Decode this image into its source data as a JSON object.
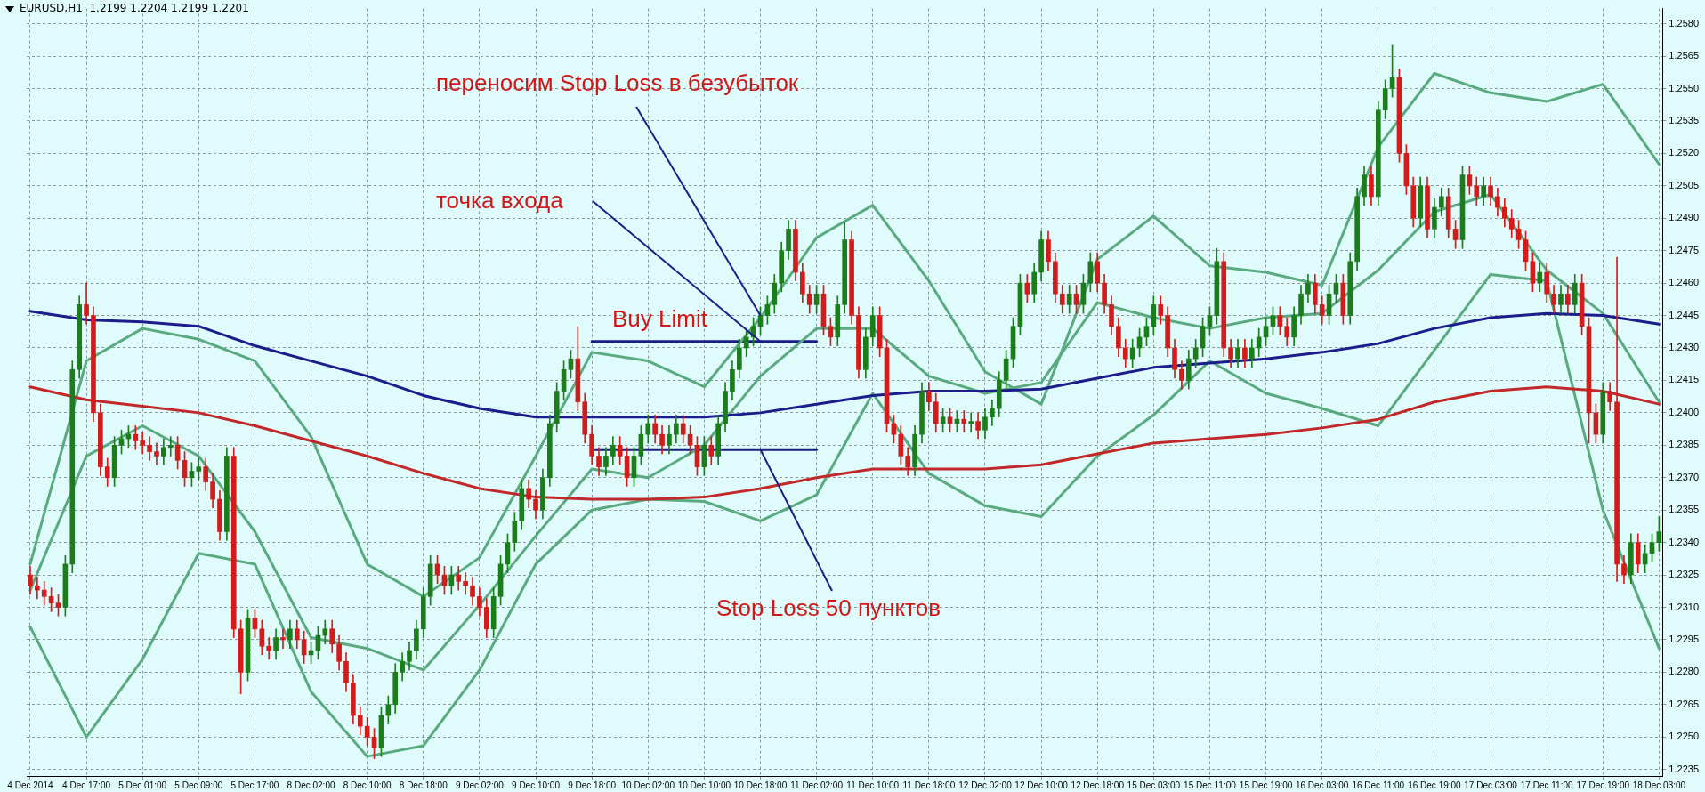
{
  "chart_data": {
    "type": "candlestick",
    "title": "EURUSD,H1  1.2199 1.2204 1.2199 1.2201",
    "categories": [
      "4 Dec 2014",
      null,
      null,
      null,
      null,
      null,
      null,
      null,
      "4 Dec 17:00",
      null,
      null,
      null,
      null,
      null,
      null,
      null,
      "5 Dec 01:00",
      null,
      null,
      null,
      null,
      null,
      null,
      null,
      "5 Dec 09:00",
      null,
      null,
      null,
      null,
      null,
      null,
      null,
      "5 Dec 17:00",
      null,
      null,
      null,
      null,
      null,
      null,
      null,
      "8 Dec 02:00",
      null,
      null,
      null,
      null,
      null,
      null,
      null,
      "8 Dec 10:00",
      null,
      null,
      null,
      null,
      null,
      null,
      null,
      "8 Dec 18:00",
      null,
      null,
      null,
      null,
      null,
      null,
      null,
      "9 Dec 02:00",
      null,
      null,
      null,
      null,
      null,
      null,
      null,
      "9 Dec 10:00",
      null,
      null,
      null,
      null,
      null,
      null,
      null,
      "9 Dec 18:00",
      null,
      null,
      null,
      null,
      null,
      null,
      null,
      "10 Dec 02:00",
      null,
      null,
      null,
      null,
      null,
      null,
      null,
      "10 Dec 10:00",
      null,
      null,
      null,
      null,
      null,
      null,
      null,
      "10 Dec 18:00",
      null,
      null,
      null,
      null,
      null,
      null,
      null,
      "11 Dec 02:00",
      null,
      null,
      null,
      null,
      null,
      null,
      null,
      "11 Dec 10:00",
      null,
      null,
      null,
      null,
      null,
      null,
      null,
      "11 Dec 18:00",
      null,
      null,
      null,
      null,
      null,
      null,
      null,
      "12 Dec 02:00",
      null,
      null,
      null,
      null,
      null,
      null,
      null,
      "12 Dec 10:00",
      null,
      null,
      null,
      null,
      null,
      null,
      null,
      "12 Dec 18:00",
      null,
      null,
      null,
      null,
      null,
      null,
      null,
      "15 Dec 03:00",
      null,
      null,
      null,
      null,
      null,
      null,
      null,
      "15 Dec 11:00",
      null,
      null,
      null,
      null,
      null,
      null,
      null,
      "15 Dec 19:00",
      null,
      null,
      null,
      null,
      null,
      null,
      null,
      "16 Dec 03:00",
      null,
      null,
      null,
      null,
      null,
      null,
      null,
      "16 Dec 11:00",
      null,
      null,
      null,
      null,
      null,
      null,
      null,
      "16 Dec 19:00",
      null,
      null,
      null,
      null,
      null,
      null,
      null,
      "17 Dec 03:00",
      null,
      null,
      null,
      null,
      null,
      null,
      null,
      "17 Dec 11:00",
      null,
      null,
      null,
      null,
      null,
      null,
      null,
      "17 Dec 19:00",
      null,
      null,
      null,
      null,
      null,
      null,
      null,
      "18 Dec 03:00"
    ],
    "ohlc": [
      [
        1.2325,
        1.2329,
        1.2316,
        1.232
      ],
      [
        1.232,
        1.2324,
        1.2314,
        1.2318
      ],
      [
        1.2318,
        1.2322,
        1.2311,
        1.2315
      ],
      [
        1.2315,
        1.2319,
        1.2308,
        1.2312
      ],
      [
        1.2312,
        1.2316,
        1.2306,
        1.231
      ],
      [
        1.231,
        1.2334,
        1.2306,
        1.233
      ],
      [
        1.233,
        1.2424,
        1.2326,
        1.242
      ],
      [
        1.242,
        1.2454,
        1.2416,
        1.245
      ],
      [
        1.245,
        1.246,
        1.2441,
        1.2445
      ],
      [
        1.2445,
        1.2449,
        1.2396,
        1.24
      ],
      [
        1.24,
        1.2404,
        1.2371,
        1.2375
      ],
      [
        1.2375,
        1.2379,
        1.2366,
        1.237
      ],
      [
        1.237,
        1.2389,
        1.2366,
        1.2385
      ],
      [
        1.2385,
        1.2392,
        1.2381,
        1.2388
      ],
      [
        1.2388,
        1.2394,
        1.2384,
        1.239
      ],
      [
        1.239,
        1.2394,
        1.2383,
        1.2387
      ],
      [
        1.2387,
        1.2391,
        1.2381,
        1.2385
      ],
      [
        1.2385,
        1.2389,
        1.2378,
        1.2382
      ],
      [
        1.2382,
        1.2386,
        1.2376,
        1.238
      ],
      [
        1.238,
        1.2388,
        1.2376,
        1.2384
      ],
      [
        1.2384,
        1.2389,
        1.238,
        1.2385
      ],
      [
        1.2385,
        1.2389,
        1.2374,
        1.2378
      ],
      [
        1.2378,
        1.2382,
        1.2366,
        1.237
      ],
      [
        1.237,
        1.2377,
        1.2366,
        1.2373
      ],
      [
        1.2373,
        1.2379,
        1.2369,
        1.2375
      ],
      [
        1.2375,
        1.2379,
        1.2364,
        1.2368
      ],
      [
        1.2368,
        1.2372,
        1.2356,
        1.236
      ],
      [
        1.236,
        1.2364,
        1.2341,
        1.2345
      ],
      [
        1.2345,
        1.2384,
        1.2341,
        1.238
      ],
      [
        1.238,
        1.2384,
        1.2296,
        1.23
      ],
      [
        1.23,
        1.2304,
        1.227,
        1.228
      ],
      [
        1.228,
        1.2309,
        1.2276,
        1.2305
      ],
      [
        1.2305,
        1.2309,
        1.2296,
        1.23
      ],
      [
        1.23,
        1.2304,
        1.2288,
        1.2292
      ],
      [
        1.2292,
        1.2296,
        1.2286,
        1.229
      ],
      [
        1.229,
        1.23,
        1.2286,
        1.2296
      ],
      [
        1.2296,
        1.23,
        1.2291,
        1.2295
      ],
      [
        1.2295,
        1.2304,
        1.2291,
        1.23
      ],
      [
        1.23,
        1.2304,
        1.2291,
        1.2295
      ],
      [
        1.2295,
        1.2299,
        1.2284,
        1.2288
      ],
      [
        1.2288,
        1.2294,
        1.2284,
        1.229
      ],
      [
        1.229,
        1.2301,
        1.2286,
        1.2297
      ],
      [
        1.2297,
        1.2304,
        1.2293,
        1.23
      ],
      [
        1.23,
        1.2304,
        1.2289,
        1.2293
      ],
      [
        1.2293,
        1.2297,
        1.2281,
        1.2285
      ],
      [
        1.2285,
        1.2289,
        1.2271,
        1.2275
      ],
      [
        1.2275,
        1.2279,
        1.2256,
        1.226
      ],
      [
        1.226,
        1.2264,
        1.2251,
        1.2255
      ],
      [
        1.2255,
        1.2259,
        1.2246,
        1.225
      ],
      [
        1.225,
        1.2254,
        1.224,
        1.2245
      ],
      [
        1.2245,
        1.2264,
        1.2241,
        1.226
      ],
      [
        1.226,
        1.2269,
        1.2256,
        1.2265
      ],
      [
        1.2265,
        1.2284,
        1.2261,
        1.228
      ],
      [
        1.228,
        1.2289,
        1.2276,
        1.2285
      ],
      [
        1.2285,
        1.2294,
        1.2281,
        1.229
      ],
      [
        1.229,
        1.2304,
        1.2286,
        1.23
      ],
      [
        1.23,
        1.2319,
        1.2296,
        1.2315
      ],
      [
        1.2315,
        1.2334,
        1.2311,
        1.233
      ],
      [
        1.233,
        1.2334,
        1.2321,
        1.2325
      ],
      [
        1.2325,
        1.2329,
        1.2316,
        1.232
      ],
      [
        1.232,
        1.2329,
        1.2316,
        1.2325
      ],
      [
        1.2325,
        1.2329,
        1.2318,
        1.2322
      ],
      [
        1.2322,
        1.2326,
        1.2316,
        1.232
      ],
      [
        1.232,
        1.2324,
        1.2311,
        1.2315
      ],
      [
        1.2315,
        1.2319,
        1.2306,
        1.231
      ],
      [
        1.231,
        1.2314,
        1.2296,
        1.23
      ],
      [
        1.23,
        1.2319,
        1.2296,
        1.2315
      ],
      [
        1.2315,
        1.2334,
        1.2311,
        1.233
      ],
      [
        1.233,
        1.2344,
        1.2326,
        1.234
      ],
      [
        1.234,
        1.2354,
        1.2336,
        1.235
      ],
      [
        1.235,
        1.2369,
        1.2346,
        1.2365
      ],
      [
        1.2365,
        1.2369,
        1.2356,
        1.236
      ],
      [
        1.236,
        1.2364,
        1.2351,
        1.2355
      ],
      [
        1.2355,
        1.2374,
        1.2351,
        1.237
      ],
      [
        1.237,
        1.2399,
        1.2366,
        1.2395
      ],
      [
        1.2395,
        1.2414,
        1.2391,
        1.241
      ],
      [
        1.241,
        1.2424,
        1.2406,
        1.242
      ],
      [
        1.242,
        1.2429,
        1.2416,
        1.2425
      ],
      [
        1.2425,
        1.244,
        1.2401,
        1.2405
      ],
      [
        1.2405,
        1.2409,
        1.2386,
        1.239
      ],
      [
        1.239,
        1.2394,
        1.2376,
        1.238
      ],
      [
        1.238,
        1.2384,
        1.2371,
        1.2375
      ],
      [
        1.2375,
        1.2384,
        1.2371,
        1.238
      ],
      [
        1.238,
        1.2389,
        1.2376,
        1.2385
      ],
      [
        1.2385,
        1.2389,
        1.2376,
        1.238
      ],
      [
        1.238,
        1.2384,
        1.2366,
        1.237
      ],
      [
        1.237,
        1.2384,
        1.2366,
        1.238
      ],
      [
        1.238,
        1.2394,
        1.2376,
        1.239
      ],
      [
        1.239,
        1.2399,
        1.2386,
        1.2395
      ],
      [
        1.2395,
        1.2399,
        1.2386,
        1.239
      ],
      [
        1.239,
        1.2394,
        1.2381,
        1.2385
      ],
      [
        1.2385,
        1.2394,
        1.2381,
        1.239
      ],
      [
        1.239,
        1.2399,
        1.2386,
        1.2395
      ],
      [
        1.2395,
        1.2399,
        1.2386,
        1.239
      ],
      [
        1.239,
        1.2394,
        1.2381,
        1.2385
      ],
      [
        1.2385,
        1.2389,
        1.2371,
        1.2375
      ],
      [
        1.2375,
        1.2389,
        1.2371,
        1.2385
      ],
      [
        1.2385,
        1.2389,
        1.2376,
        1.238
      ],
      [
        1.238,
        1.2399,
        1.2376,
        1.2395
      ],
      [
        1.2395,
        1.2414,
        1.2391,
        1.241
      ],
      [
        1.241,
        1.2424,
        1.2406,
        1.242
      ],
      [
        1.242,
        1.2434,
        1.2416,
        1.243
      ],
      [
        1.243,
        1.2439,
        1.2426,
        1.2435
      ],
      [
        1.2435,
        1.2444,
        1.2431,
        1.244
      ],
      [
        1.244,
        1.2449,
        1.2436,
        1.2445
      ],
      [
        1.2445,
        1.2454,
        1.2441,
        1.245
      ],
      [
        1.245,
        1.2464,
        1.2446,
        1.246
      ],
      [
        1.246,
        1.2479,
        1.2456,
        1.2475
      ],
      [
        1.2475,
        1.2489,
        1.2471,
        1.2485
      ],
      [
        1.2485,
        1.2489,
        1.2461,
        1.2465
      ],
      [
        1.2465,
        1.2469,
        1.2451,
        1.2455
      ],
      [
        1.2455,
        1.2459,
        1.2446,
        1.245
      ],
      [
        1.245,
        1.2459,
        1.2446,
        1.2455
      ],
      [
        1.2455,
        1.2459,
        1.2436,
        1.244
      ],
      [
        1.244,
        1.2444,
        1.2431,
        1.2435
      ],
      [
        1.2435,
        1.2454,
        1.2431,
        1.245
      ],
      [
        1.245,
        1.2488,
        1.2446,
        1.248
      ],
      [
        1.248,
        1.2484,
        1.2441,
        1.2445
      ],
      [
        1.2445,
        1.2449,
        1.2416,
        1.242
      ],
      [
        1.242,
        1.2439,
        1.2416,
        1.2435
      ],
      [
        1.2435,
        1.2449,
        1.2431,
        1.2445
      ],
      [
        1.2445,
        1.2449,
        1.2426,
        1.243
      ],
      [
        1.243,
        1.2434,
        1.2391,
        1.2395
      ],
      [
        1.2395,
        1.2399,
        1.2386,
        1.239
      ],
      [
        1.239,
        1.2394,
        1.2376,
        1.238
      ],
      [
        1.238,
        1.2384,
        1.2371,
        1.2375
      ],
      [
        1.2375,
        1.2394,
        1.2371,
        1.239
      ],
      [
        1.239,
        1.2414,
        1.2386,
        1.241
      ],
      [
        1.241,
        1.2414,
        1.2401,
        1.2405
      ],
      [
        1.2405,
        1.2409,
        1.2391,
        1.2395
      ],
      [
        1.2395,
        1.2402,
        1.2391,
        1.2398
      ],
      [
        1.2398,
        1.2402,
        1.2391,
        1.2395
      ],
      [
        1.2395,
        1.2401,
        1.2391,
        1.2397
      ],
      [
        1.2397,
        1.2401,
        1.2391,
        1.2395
      ],
      [
        1.2395,
        1.24,
        1.2391,
        1.2396
      ],
      [
        1.2396,
        1.24,
        1.2388,
        1.2392
      ],
      [
        1.2392,
        1.2402,
        1.2388,
        1.2398
      ],
      [
        1.2398,
        1.2406,
        1.2394,
        1.2402
      ],
      [
        1.2402,
        1.2419,
        1.2398,
        1.2415
      ],
      [
        1.2415,
        1.2429,
        1.2411,
        1.2425
      ],
      [
        1.2425,
        1.2444,
        1.2421,
        1.244
      ],
      [
        1.244,
        1.2464,
        1.2436,
        1.246
      ],
      [
        1.246,
        1.2464,
        1.2451,
        1.2455
      ],
      [
        1.2455,
        1.2469,
        1.2451,
        1.2465
      ],
      [
        1.2465,
        1.2484,
        1.2461,
        1.248
      ],
      [
        1.248,
        1.2484,
        1.2466,
        1.247
      ],
      [
        1.247,
        1.2474,
        1.2451,
        1.2455
      ],
      [
        1.2455,
        1.2459,
        1.2446,
        1.245
      ],
      [
        1.245,
        1.2459,
        1.2446,
        1.2455
      ],
      [
        1.2455,
        1.2459,
        1.2446,
        1.245
      ],
      [
        1.245,
        1.2464,
        1.2446,
        1.246
      ],
      [
        1.246,
        1.2474,
        1.2456,
        1.247
      ],
      [
        1.247,
        1.2474,
        1.2456,
        1.246
      ],
      [
        1.246,
        1.2464,
        1.2446,
        1.245
      ],
      [
        1.245,
        1.2454,
        1.2436,
        1.244
      ],
      [
        1.244,
        1.2444,
        1.2426,
        1.243
      ],
      [
        1.243,
        1.2434,
        1.2421,
        1.2425
      ],
      [
        1.2425,
        1.2434,
        1.2421,
        1.243
      ],
      [
        1.243,
        1.2439,
        1.2426,
        1.2435
      ],
      [
        1.2435,
        1.2444,
        1.2431,
        1.244
      ],
      [
        1.244,
        1.2454,
        1.2436,
        1.245
      ],
      [
        1.245,
        1.2454,
        1.2441,
        1.2445
      ],
      [
        1.2445,
        1.2449,
        1.2426,
        1.243
      ],
      [
        1.243,
        1.2434,
        1.2416,
        1.242
      ],
      [
        1.242,
        1.2424,
        1.2411,
        1.2415
      ],
      [
        1.2415,
        1.2429,
        1.2411,
        1.2425
      ],
      [
        1.2425,
        1.2434,
        1.2421,
        1.243
      ],
      [
        1.243,
        1.2444,
        1.2426,
        1.244
      ],
      [
        1.244,
        1.2449,
        1.2436,
        1.2445
      ],
      [
        1.2445,
        1.2476,
        1.2441,
        1.247
      ],
      [
        1.247,
        1.2474,
        1.2426,
        1.243
      ],
      [
        1.243,
        1.2434,
        1.2421,
        1.2425
      ],
      [
        1.2425,
        1.2434,
        1.2421,
        1.243
      ],
      [
        1.243,
        1.2434,
        1.2421,
        1.2425
      ],
      [
        1.2425,
        1.2434,
        1.2421,
        1.243
      ],
      [
        1.243,
        1.2439,
        1.2426,
        1.2435
      ],
      [
        1.2435,
        1.2444,
        1.2431,
        1.244
      ],
      [
        1.244,
        1.2449,
        1.2436,
        1.2445
      ],
      [
        1.2445,
        1.2449,
        1.2436,
        1.244
      ],
      [
        1.244,
        1.2444,
        1.2431,
        1.2435
      ],
      [
        1.2435,
        1.2449,
        1.2431,
        1.2445
      ],
      [
        1.2445,
        1.2459,
        1.2441,
        1.2455
      ],
      [
        1.2455,
        1.2464,
        1.2451,
        1.246
      ],
      [
        1.246,
        1.2464,
        1.2446,
        1.245
      ],
      [
        1.245,
        1.2454,
        1.2441,
        1.2445
      ],
      [
        1.2445,
        1.2459,
        1.2441,
        1.2455
      ],
      [
        1.2455,
        1.2464,
        1.2451,
        1.246
      ],
      [
        1.246,
        1.2464,
        1.2441,
        1.2445
      ],
      [
        1.2445,
        1.2474,
        1.2441,
        1.247
      ],
      [
        1.247,
        1.2504,
        1.2466,
        1.25
      ],
      [
        1.25,
        1.2514,
        1.2496,
        1.251
      ],
      [
        1.251,
        1.2514,
        1.2496,
        1.25
      ],
      [
        1.25,
        1.2544,
        1.2496,
        1.254
      ],
      [
        1.254,
        1.2554,
        1.2536,
        1.255
      ],
      [
        1.255,
        1.257,
        1.2546,
        1.2555
      ],
      [
        1.2555,
        1.2559,
        1.2516,
        1.252
      ],
      [
        1.252,
        1.2524,
        1.2501,
        1.2505
      ],
      [
        1.2505,
        1.2509,
        1.2486,
        1.249
      ],
      [
        1.249,
        1.2509,
        1.2486,
        1.2505
      ],
      [
        1.2505,
        1.2509,
        1.2481,
        1.2485
      ],
      [
        1.2485,
        1.2499,
        1.2481,
        1.2495
      ],
      [
        1.2495,
        1.2504,
        1.2491,
        1.25
      ],
      [
        1.25,
        1.2504,
        1.2481,
        1.2485
      ],
      [
        1.2485,
        1.2489,
        1.2476,
        1.248
      ],
      [
        1.248,
        1.2514,
        1.2476,
        1.251
      ],
      [
        1.251,
        1.2514,
        1.2501,
        1.2505
      ],
      [
        1.2505,
        1.2509,
        1.2496,
        1.25
      ],
      [
        1.25,
        1.2509,
        1.2496,
        1.2505
      ],
      [
        1.2505,
        1.2509,
        1.2496,
        1.25
      ],
      [
        1.25,
        1.2504,
        1.2491,
        1.2495
      ],
      [
        1.2495,
        1.2499,
        1.2486,
        1.249
      ],
      [
        1.249,
        1.2494,
        1.2481,
        1.2485
      ],
      [
        1.2485,
        1.2489,
        1.2476,
        1.248
      ],
      [
        1.248,
        1.2484,
        1.2466,
        1.247
      ],
      [
        1.247,
        1.2474,
        1.2456,
        1.246
      ],
      [
        1.246,
        1.2469,
        1.2456,
        1.2465
      ],
      [
        1.2465,
        1.2469,
        1.2451,
        1.2455
      ],
      [
        1.2455,
        1.2459,
        1.2446,
        1.245
      ],
      [
        1.245,
        1.2459,
        1.2446,
        1.2455
      ],
      [
        1.2455,
        1.2459,
        1.2446,
        1.245
      ],
      [
        1.245,
        1.2464,
        1.2446,
        1.246
      ],
      [
        1.246,
        1.2464,
        1.2436,
        1.244
      ],
      [
        1.244,
        1.2444,
        1.2386,
        1.24
      ],
      [
        1.24,
        1.2404,
        1.2386,
        1.239
      ],
      [
        1.239,
        1.2414,
        1.2386,
        1.241
      ],
      [
        1.241,
        1.2414,
        1.2401,
        1.2405
      ],
      [
        1.2405,
        1.2472,
        1.2322,
        1.233
      ],
      [
        1.233,
        1.2334,
        1.2321,
        1.2325
      ],
      [
        1.2325,
        1.2344,
        1.2321,
        1.234
      ],
      [
        1.234,
        1.2344,
        1.2326,
        1.233
      ],
      [
        1.233,
        1.2339,
        1.2326,
        1.2335
      ],
      [
        1.2335,
        1.2344,
        1.2331,
        1.234
      ],
      [
        1.234,
        1.2352,
        1.2336,
        1.2345
      ]
    ],
    "series": [
      {
        "type": "line",
        "color": "#1c1c8a",
        "x": [
          "4 Dec 2014",
          "4 Dec 17:00",
          "5 Dec 01:00",
          "5 Dec 09:00",
          "5 Dec 17:00",
          "8 Dec 02:00",
          "8 Dec 10:00",
          "8 Dec 18:00",
          "9 Dec 02:00",
          "9 Dec 10:00",
          "9 Dec 18:00",
          "10 Dec 02:00",
          "10 Dec 10:00",
          "10 Dec 18:00",
          "11 Dec 02:00",
          "11 Dec 10:00",
          "11 Dec 18:00",
          "12 Dec 02:00",
          "12 Dec 10:00",
          "12 Dec 18:00",
          "15 Dec 03:00",
          "15 Dec 11:00",
          "15 Dec 19:00",
          "16 Dec 03:00",
          "16 Dec 11:00",
          "16 Dec 19:00",
          "17 Dec 03:00",
          "17 Dec 11:00",
          "17 Dec 19:00",
          "18 Dec 03:00"
        ],
        "values": [
          1.2447,
          1.2443,
          1.2442,
          1.244,
          1.2431,
          1.2424,
          1.2417,
          1.2408,
          1.2402,
          1.2398,
          1.2398,
          1.2398,
          1.2398,
          1.24,
          1.2404,
          1.2408,
          1.241,
          1.241,
          1.2411,
          1.2416,
          1.2421,
          1.2423,
          1.2425,
          1.2428,
          1.2432,
          1.2439,
          1.2444,
          1.2446,
          1.2445,
          1.2441
        ]
      },
      {
        "type": "line",
        "color": "#c0282a",
        "x": [
          "4 Dec 2014",
          "4 Dec 17:00",
          "5 Dec 01:00",
          "5 Dec 09:00",
          "5 Dec 17:00",
          "8 Dec 02:00",
          "8 Dec 10:00",
          "8 Dec 18:00",
          "9 Dec 02:00",
          "9 Dec 10:00",
          "9 Dec 18:00",
          "10 Dec 02:00",
          "10 Dec 10:00",
          "10 Dec 18:00",
          "11 Dec 02:00",
          "11 Dec 10:00",
          "11 Dec 18:00",
          "12 Dec 02:00",
          "12 Dec 10:00",
          "12 Dec 18:00",
          "15 Dec 03:00",
          "15 Dec 11:00",
          "15 Dec 19:00",
          "16 Dec 03:00",
          "16 Dec 11:00",
          "16 Dec 19:00",
          "17 Dec 03:00",
          "17 Dec 11:00",
          "17 Dec 19:00",
          "18 Dec 03:00"
        ],
        "values": [
          1.2412,
          1.2406,
          1.2403,
          1.24,
          1.2394,
          1.2387,
          1.238,
          1.2372,
          1.2365,
          1.2361,
          1.236,
          1.236,
          1.2361,
          1.2365,
          1.237,
          1.2374,
          1.2374,
          1.2374,
          1.2376,
          1.2381,
          1.2386,
          1.2388,
          1.239,
          1.2393,
          1.2397,
          1.2405,
          1.241,
          1.2412,
          1.241,
          1.2404
        ]
      },
      {
        "type": "line",
        "color": "#5aaa80",
        "x": [
          "4 Dec 2014",
          "4 Dec 17:00",
          "5 Dec 01:00",
          "5 Dec 09:00",
          "5 Dec 17:00",
          "8 Dec 02:00",
          "8 Dec 10:00",
          "8 Dec 18:00",
          "9 Dec 02:00",
          "9 Dec 10:00",
          "9 Dec 18:00",
          "10 Dec 02:00",
          "10 Dec 10:00",
          "10 Dec 18:00",
          "11 Dec 02:00",
          "11 Dec 10:00",
          "11 Dec 18:00",
          "12 Dec 02:00",
          "12 Dec 10:00",
          "12 Dec 18:00",
          "15 Dec 03:00",
          "15 Dec 11:00",
          "15 Dec 19:00",
          "16 Dec 03:00",
          "16 Dec 11:00",
          "16 Dec 19:00",
          "17 Dec 03:00",
          "17 Dec 11:00",
          "17 Dec 19:00",
          "18 Dec 03:00"
        ],
        "values": [
          1.233,
          1.2424,
          1.2439,
          1.2434,
          1.2424,
          1.2389,
          1.233,
          1.2315,
          1.2333,
          1.238,
          1.2428,
          1.2424,
          1.2412,
          1.2444,
          1.2481,
          1.2496,
          1.2461,
          1.2419,
          1.2404,
          1.2471,
          1.2491,
          1.2468,
          1.2465,
          1.2459,
          1.2523,
          1.2557,
          1.2548,
          1.2544,
          1.2552,
          1.2515
        ]
      },
      {
        "type": "line",
        "color": "#5aaa80",
        "x": [
          "4 Dec 2014",
          "4 Dec 17:00",
          "5 Dec 01:00",
          "5 Dec 09:00",
          "5 Dec 17:00",
          "8 Dec 02:00",
          "8 Dec 10:00",
          "8 Dec 18:00",
          "9 Dec 02:00",
          "9 Dec 10:00",
          "9 Dec 18:00",
          "10 Dec 02:00",
          "10 Dec 10:00",
          "10 Dec 18:00",
          "11 Dec 02:00",
          "11 Dec 10:00",
          "11 Dec 18:00",
          "12 Dec 02:00",
          "12 Dec 10:00",
          "12 Dec 18:00",
          "15 Dec 03:00",
          "15 Dec 11:00",
          "15 Dec 19:00",
          "16 Dec 03:00",
          "16 Dec 11:00",
          "16 Dec 19:00",
          "17 Dec 03:00",
          "17 Dec 11:00",
          "17 Dec 19:00",
          "18 Dec 03:00"
        ],
        "values": [
          1.2318,
          1.238,
          1.2394,
          1.238,
          1.2345,
          1.2296,
          1.2291,
          1.2281,
          1.2311,
          1.2343,
          1.2374,
          1.237,
          1.2385,
          1.2417,
          1.2439,
          1.2439,
          1.2417,
          1.2409,
          1.2414,
          1.2451,
          1.2444,
          1.2439,
          1.2444,
          1.2446,
          1.2466,
          1.2493,
          1.2501,
          1.2466,
          1.2446,
          1.2405
        ]
      },
      {
        "type": "line",
        "color": "#5aaa80",
        "x": [
          "4 Dec 2014",
          "4 Dec 17:00",
          "5 Dec 01:00",
          "5 Dec 09:00",
          "5 Dec 17:00",
          "8 Dec 02:00",
          "8 Dec 10:00",
          "8 Dec 18:00",
          "9 Dec 02:00",
          "9 Dec 10:00",
          "9 Dec 18:00",
          "10 Dec 02:00",
          "10 Dec 10:00",
          "10 Dec 18:00",
          "11 Dec 02:00",
          "11 Dec 10:00",
          "11 Dec 18:00",
          "12 Dec 02:00",
          "12 Dec 10:00",
          "12 Dec 18:00",
          "15 Dec 03:00",
          "15 Dec 11:00",
          "15 Dec 19:00",
          "16 Dec 03:00",
          "16 Dec 11:00",
          "16 Dec 19:00",
          "17 Dec 03:00",
          "17 Dec 11:00",
          "17 Dec 19:00",
          "18 Dec 03:00"
        ],
        "values": [
          1.2301,
          1.225,
          1.2286,
          1.2335,
          1.233,
          1.2271,
          1.2241,
          1.2246,
          1.2281,
          1.233,
          1.2355,
          1.236,
          1.2359,
          1.235,
          1.2362,
          1.2409,
          1.2372,
          1.2357,
          1.2352,
          1.238,
          1.2399,
          1.2424,
          1.2409,
          1.2402,
          1.2394,
          1.2429,
          1.2464,
          1.2461,
          1.2355,
          1.2291
        ]
      },
      {
        "type": "line",
        "color": "#1c1c8a",
        "x": [
          "9 Dec 18:00",
          "11 Dec 02:00"
        ],
        "values": [
          1.2433,
          1.2433
        ]
      },
      {
        "type": "line",
        "color": "#1c1c8a",
        "x": [
          "9 Dec 18:00",
          "11 Dec 02:00"
        ],
        "values": [
          1.2383,
          1.2383
        ]
      }
    ],
    "annotations": [
      {
        "text": "переносим Stop Loss в безубыток",
        "x": "10 Dec 18:00",
        "y": 1.2445
      },
      {
        "text": "точка входа",
        "x": "10 Dec 18:00",
        "y": 1.2433
      },
      "Buy Limit",
      {
        "text": "Stop Loss 50 пунктов",
        "x": "10 Dec 18:00",
        "y": 1.2383
      }
    ],
    "ylim": [
      1.2232,
      1.2587
    ],
    "yticks": [
      {
        "value": 1.2235,
        "label": "1.2235"
      },
      {
        "value": 1.225,
        "label": "1.2250"
      },
      {
        "value": 1.2265,
        "label": "1.2265"
      },
      {
        "value": 1.228,
        "label": "1.2280"
      },
      {
        "value": 1.2295,
        "label": "1.2295"
      },
      {
        "value": 1.231,
        "label": "1.2310"
      },
      {
        "value": 1.2325,
        "label": "1.2325"
      },
      {
        "value": 1.234,
        "label": "1.2340"
      },
      {
        "value": 1.2355,
        "label": "1.2355"
      },
      {
        "value": 1.237,
        "label": "1.2370"
      },
      {
        "value": 1.2385,
        "label": "1.2385"
      },
      {
        "value": 1.24,
        "label": "1.2400"
      },
      {
        "value": 1.2415,
        "label": "1.2415"
      },
      {
        "value": 1.243,
        "label": "1.2430"
      },
      {
        "value": 1.2445,
        "label": "1.2445"
      },
      {
        "value": 1.246,
        "label": "1.2460"
      },
      {
        "value": 1.2475,
        "label": "1.2475"
      },
      {
        "value": 1.249,
        "label": "1.2490"
      },
      {
        "value": 1.2505,
        "label": "1.2505"
      },
      {
        "value": 1.252,
        "label": "1.2520"
      },
      {
        "value": 1.2535,
        "label": "1.2535"
      },
      {
        "value": 1.255,
        "label": "1.2550"
      },
      {
        "value": 1.2565,
        "label": "1.2565"
      },
      {
        "value": 1.258,
        "label": "1.2580"
      }
    ],
    "grid": true,
    "legend": false
  }
}
